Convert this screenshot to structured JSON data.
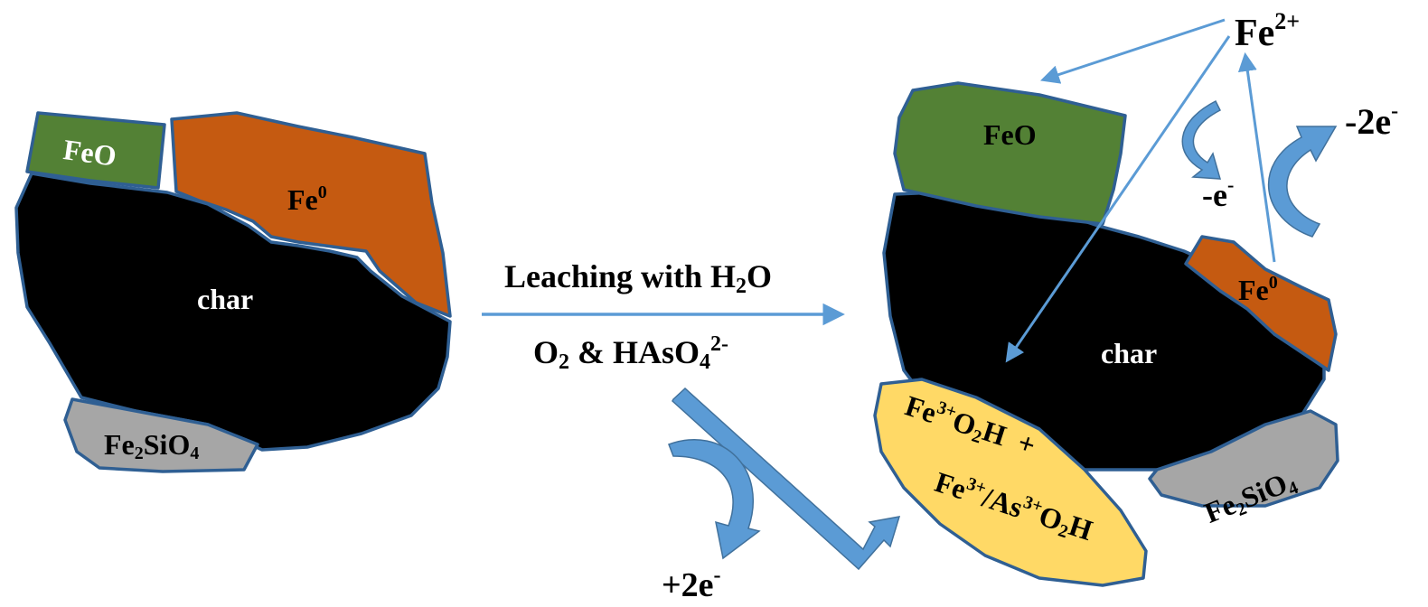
{
  "colors": {
    "feo": "#538135",
    "fe0": "#c55a11",
    "char": "#000000",
    "fe2sio4": "#a6a6a6",
    "oxyhydroxide": "#ffd966",
    "outline": "#2f5f93",
    "arrow": "#5b9bd5"
  },
  "left": {
    "feo": "FeO",
    "fe0_base": "Fe",
    "fe0_sup": "0",
    "char": "char",
    "fe2sio4_a": "Fe",
    "fe2sio4_sub1": "2",
    "fe2sio4_b": "SiO",
    "fe2sio4_sub2": "4"
  },
  "process": {
    "line1_a": "Leaching with H",
    "line1_sub": "2",
    "line1_b": "O",
    "line2_a": "O",
    "line2_sub1": "2",
    "line2_b": " & HAsO",
    "line2_sub2": "4",
    "line2_sup": "2-"
  },
  "right": {
    "feo": "FeO",
    "fe0_base": "Fe",
    "fe0_sup": "0",
    "char": "char",
    "fe2sio4_a": "Fe",
    "fe2sio4_sub1": "2",
    "fe2sio4_b": "SiO",
    "fe2sio4_sub2": "4",
    "oxy1_a": "Fe",
    "oxy1_sup": "3+",
    "oxy1_b": "O",
    "oxy1_sub": "2",
    "oxy1_c": "H  +",
    "oxy2_a": "Fe",
    "oxy2_sup1": "3+",
    "oxy2_b": "/As",
    "oxy2_sup2": "3+",
    "oxy2_c": "O",
    "oxy2_sub": "2",
    "oxy2_d": "H"
  },
  "ions": {
    "fe2_base": "Fe",
    "fe2_sup": "2+"
  },
  "electrons": {
    "minus_one_base": "-e",
    "minus_one_sup": "-",
    "minus_two_base": "-2e",
    "minus_two_sup": "-",
    "plus_two_base": "+2e",
    "plus_two_sup": "-"
  }
}
